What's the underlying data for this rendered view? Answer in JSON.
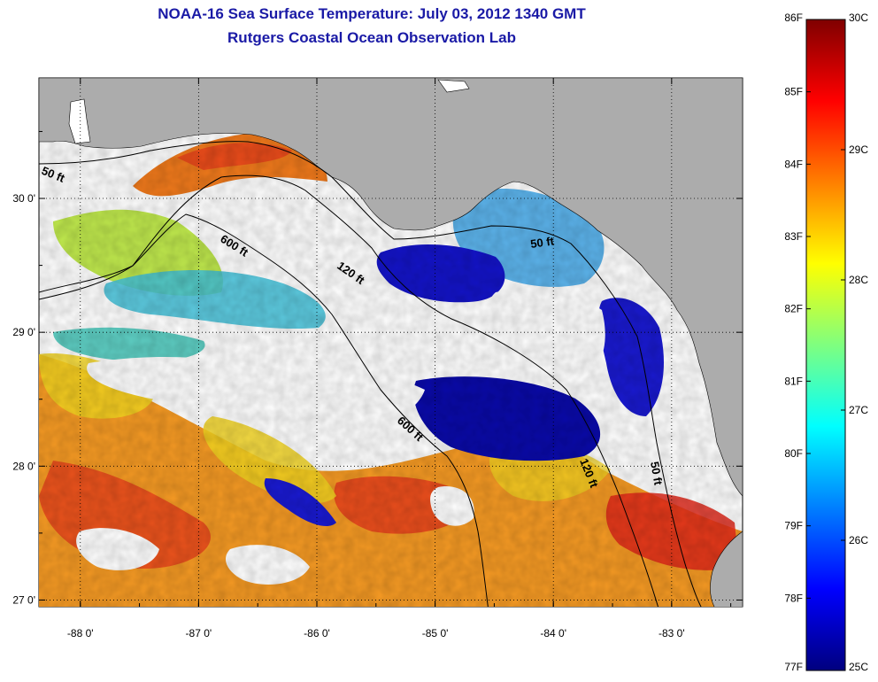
{
  "title": {
    "line1": "NOAA-16 Sea Surface Temperature:  July 03, 2012 1340 GMT",
    "line2": "Rutgers Coastal Ocean Observation Lab"
  },
  "map": {
    "region": "Northeastern Gulf of Mexico / Florida Big Bend",
    "lon_range": [
      -88.35,
      -82.4
    ],
    "lat_range": [
      26.95,
      30.9
    ],
    "lon_ticks": [
      {
        "value": -88,
        "label": "-88 0'"
      },
      {
        "value": -87,
        "label": "-87 0'"
      },
      {
        "value": -86,
        "label": "-86 0'"
      },
      {
        "value": -85,
        "label": "-85 0'"
      },
      {
        "value": -84,
        "label": "-84 0'"
      },
      {
        "value": -83,
        "label": "-83 0'"
      }
    ],
    "lat_ticks": [
      {
        "value": 30,
        "label": "30 0'"
      },
      {
        "value": 29,
        "label": "29 0'"
      },
      {
        "value": 28,
        "label": "28 0'"
      },
      {
        "value": 27,
        "label": "27 0'"
      }
    ],
    "contour_labels": [
      "50 ft",
      "600 ft",
      "120 ft",
      "50 ft",
      "600 ft",
      "120 ft",
      "50 ft"
    ],
    "colors": {
      "land": "#acacac",
      "no_data": "#ffffff",
      "isobath": "#000000"
    }
  },
  "colorbar": {
    "min_c": 25,
    "max_c": 30,
    "min_f": 77,
    "max_f": 86,
    "f_labels": [
      "86F",
      "85F",
      "84F",
      "83F",
      "82F",
      "81F",
      "80F",
      "79F",
      "78F",
      "77F"
    ],
    "c_labels": [
      "30C",
      "29C",
      "28C",
      "27C",
      "26C",
      "25C"
    ],
    "stops": [
      "#00007f",
      "#0000ff",
      "#007fff",
      "#00ffff",
      "#7fff7f",
      "#ffff00",
      "#ff7f00",
      "#ff0000",
      "#7f0000"
    ]
  }
}
